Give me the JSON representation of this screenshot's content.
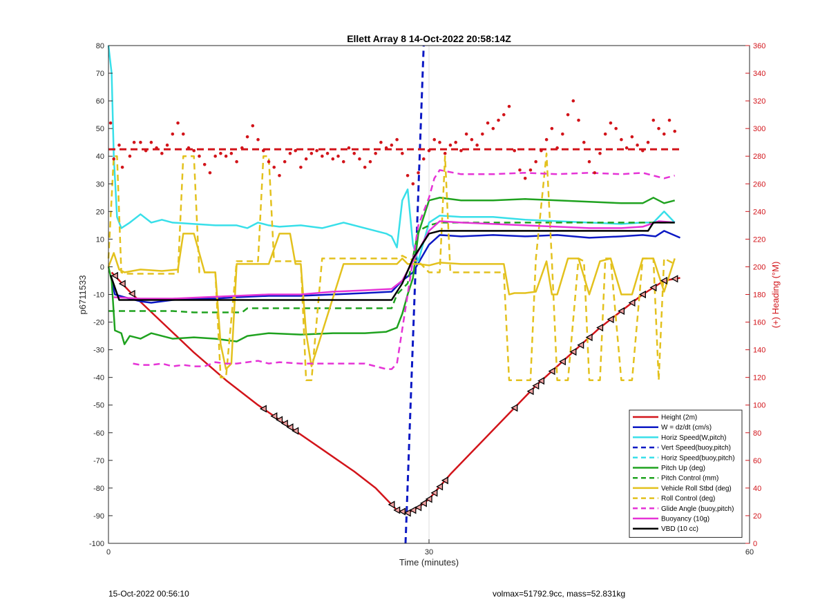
{
  "chart_data": {
    "type": "line",
    "title": "Ellett Array 8 14-Oct-2022 20:58:14Z",
    "xlabel": "Time (minutes)",
    "ylabel": "p6711533",
    "y2label": "(+) Heading (°M)",
    "xlim": [
      0,
      60
    ],
    "ylim": [
      -100,
      80
    ],
    "y2lim": [
      0,
      360
    ],
    "xticks": [
      0,
      30,
      60
    ],
    "yticks": [
      -100,
      -90,
      -80,
      -70,
      -60,
      -50,
      -40,
      -30,
      -20,
      -10,
      0,
      10,
      20,
      30,
      40,
      50,
      60,
      70,
      80
    ],
    "y2ticks": [
      0,
      20,
      40,
      60,
      80,
      100,
      120,
      140,
      160,
      180,
      200,
      220,
      240,
      260,
      280,
      300,
      320,
      340,
      360
    ],
    "grid": "x-only",
    "legend_position": "bottom-right",
    "colors": {
      "red": "#d2141a",
      "blue": "#0b18c4",
      "cyan": "#38dfe9",
      "green": "#1fa21f",
      "yellow": "#e3c11d",
      "magenta": "#e533d6",
      "black": "#000000",
      "right_axis": "#d2141a"
    },
    "series": [
      {
        "name": "Height (2m)",
        "color": "#d2141a",
        "style": "solid",
        "x": [
          0.3,
          2,
          5,
          8,
          11,
          14,
          17,
          20,
          23,
          25,
          26,
          27,
          28,
          29,
          30,
          32,
          34,
          36,
          38,
          40,
          42,
          44,
          46,
          48,
          50,
          52,
          53.5
        ],
        "y": [
          -2,
          -9,
          -20,
          -31,
          -41,
          -50,
          -58,
          -66,
          -74,
          -80,
          -84,
          -88,
          -89,
          -87,
          -84,
          -75,
          -67,
          -59,
          -51,
          -43,
          -36,
          -29,
          -22,
          -16,
          -10,
          -5,
          -4
        ]
      },
      {
        "name": "W = dz/dt (cm/s)",
        "color": "#0b18c4",
        "style": "solid",
        "x": [
          0.2,
          0.6,
          1.5,
          3,
          4,
          6,
          8,
          10,
          12,
          15,
          18,
          21,
          24,
          26.5,
          27.5,
          28.5,
          30,
          31,
          33,
          36,
          39,
          42,
          45,
          48,
          50,
          51.2,
          52,
          53.5
        ],
        "y": [
          -3,
          -10,
          -11,
          -12.5,
          -13,
          -12,
          -11.5,
          -11.5,
          -11,
          -10.5,
          -10.5,
          -10,
          -9.5,
          -9,
          -5,
          -2,
          8,
          11.5,
          11,
          11.5,
          11,
          11.5,
          10.5,
          11,
          11.5,
          11,
          13,
          10.5
        ]
      },
      {
        "name": "Horiz Speed(W,pitch)",
        "color": "#38dfe9",
        "style": "solid",
        "x": [
          0,
          0.3,
          0.5,
          0.8,
          1.2,
          2,
          3,
          4,
          5,
          6,
          8,
          10,
          12,
          13,
          14,
          15,
          16,
          18,
          20,
          22,
          24,
          26,
          26.5,
          27,
          27.5,
          28,
          28.5,
          29,
          30,
          31,
          33,
          36,
          39,
          42,
          45,
          48,
          50,
          51,
          52,
          53
        ],
        "y": [
          80,
          70,
          40,
          18,
          14,
          16,
          19,
          16,
          17,
          16,
          15.5,
          15,
          15,
          14,
          16,
          15,
          14.5,
          15,
          14,
          16,
          14,
          12,
          11,
          7,
          24,
          28,
          8,
          2,
          16,
          18.5,
          18,
          18,
          17,
          16.5,
          16,
          15.5,
          16,
          16,
          20,
          16
        ]
      },
      {
        "name": "Vert Speed(buoy,pitch)",
        "color": "#0b18c4",
        "style": "dashed",
        "x": [
          27.8,
          29.5
        ],
        "y": [
          -100,
          80
        ]
      },
      {
        "name": "Horiz Speed(buoy,pitch)",
        "color": "#38dfe9",
        "style": "dashed",
        "x": [],
        "y": []
      },
      {
        "name": "Pitch Up (deg)",
        "color": "#1fa21f",
        "style": "solid",
        "x": [
          0,
          0.3,
          0.6,
          1.2,
          1.5,
          2,
          3,
          4,
          5,
          6,
          8,
          10,
          12,
          13,
          15,
          18,
          21,
          24,
          26,
          27,
          27.5,
          28,
          28.5,
          29,
          30,
          31,
          33,
          36,
          39,
          42,
          45,
          48,
          50,
          51,
          52,
          53
        ],
        "y": [
          0,
          -5,
          -23,
          -24,
          -28,
          -25,
          -26,
          -24,
          -25,
          -26,
          -25.5,
          -26,
          -27,
          -25,
          -24,
          -24.5,
          -24,
          -24,
          -23.5,
          -22,
          -17,
          -10,
          -4,
          12,
          24,
          25,
          24,
          24,
          24.5,
          24,
          23.5,
          23,
          23,
          25,
          23,
          24
        ]
      },
      {
        "name": "Pitch Control (mm)",
        "color": "#1fa21f",
        "style": "dashed",
        "x": [
          0,
          0.5,
          1,
          3,
          6,
          8,
          10,
          12,
          12.5,
          13,
          15,
          18,
          21,
          24,
          26.5,
          27,
          28,
          29,
          30,
          31,
          33,
          36,
          39,
          42,
          45,
          48,
          50,
          53
        ],
        "y": [
          -16,
          -16,
          -16,
          -16,
          -16,
          -16.5,
          -16.5,
          -16.5,
          -16.5,
          -15,
          -15,
          -15,
          -15,
          -15,
          -15,
          -10,
          -6,
          13,
          15,
          16,
          16,
          16,
          16,
          16,
          16,
          16,
          16,
          16
        ]
      },
      {
        "name": "Vehicle Roll Stbd (deg)",
        "color": "#e3c11d",
        "style": "solid",
        "x": [
          0,
          0.5,
          1,
          1.5,
          3,
          5,
          6.5,
          7,
          8,
          9,
          10,
          10.5,
          11,
          11.5,
          12,
          13,
          15,
          16,
          17,
          17.5,
          18,
          18.5,
          19,
          22,
          25,
          27,
          27.5,
          28,
          29,
          30,
          31,
          33,
          36,
          37,
          37.5,
          38,
          39,
          40,
          41,
          41.5,
          42,
          43,
          44,
          45,
          46,
          47,
          48,
          49,
          50,
          51,
          52,
          53
        ],
        "y": [
          0,
          5,
          -1,
          -2,
          -1,
          -1.5,
          -1,
          12,
          12,
          -2,
          -2,
          -28,
          -37,
          -35,
          1,
          1,
          1,
          12,
          12,
          1,
          1,
          -24,
          -36,
          1,
          1,
          1,
          3,
          1,
          1,
          0.5,
          1.5,
          1,
          1,
          1,
          -10,
          -9.5,
          -9.5,
          -9,
          2,
          -10,
          -10,
          3,
          3,
          -10,
          2,
          3,
          -10,
          -10,
          3,
          3,
          -9,
          3
        ]
      },
      {
        "name": "Roll Control (deg)",
        "color": "#e3c11d",
        "style": "dashed",
        "x": [
          0,
          0.5,
          0.8,
          1.2,
          1.5,
          6.5,
          7,
          8,
          8.5,
          10,
          10.5,
          11,
          12,
          13,
          14,
          14.5,
          15,
          15.5,
          16,
          17,
          18,
          18.5,
          19,
          20,
          24,
          27,
          27.5,
          28,
          29,
          30,
          31,
          31.5,
          32,
          33,
          37,
          37.5,
          38,
          39.5,
          40,
          41,
          41.5,
          42,
          43,
          44,
          44.5,
          45,
          46,
          46.5,
          47,
          48,
          49,
          50,
          51,
          51.5,
          52,
          53
        ],
        "y": [
          3,
          40,
          40,
          -2,
          -2.5,
          -2.5,
          40,
          40,
          -2,
          -2,
          -40,
          -40,
          2,
          2,
          2,
          40,
          40,
          2,
          2,
          2,
          2,
          -41,
          -41,
          3,
          3,
          3,
          4,
          3,
          2,
          -2,
          -2,
          40,
          -2,
          -2,
          -2,
          -41,
          -41,
          -41,
          3,
          41,
          2,
          -41,
          -41,
          3,
          2,
          -41,
          -41,
          3,
          3,
          -41,
          -41,
          3,
          3,
          -41,
          3,
          1
        ]
      },
      {
        "name": "Glide Angle (buoy,pitch)",
        "color": "#e533d6",
        "style": "dashed",
        "x": [
          2.3,
          3,
          4,
          5,
          6,
          7,
          8,
          9,
          10,
          11,
          12,
          13,
          14,
          15,
          16,
          18,
          20,
          22,
          24,
          26,
          26.5,
          27,
          28,
          29,
          30,
          30.5,
          31,
          33,
          36,
          39,
          42,
          45,
          48,
          50,
          51,
          52,
          53
        ],
        "y": [
          -35,
          -35.5,
          -35.5,
          -35,
          -36,
          -35.5,
          -36,
          -36,
          -34.5,
          -35,
          -35,
          -34.5,
          -34,
          -35,
          -34.5,
          -35,
          -35,
          -35,
          -35,
          -37,
          -37,
          -35,
          -10,
          15,
          25,
          32,
          35,
          33.5,
          33.5,
          34,
          33.5,
          34,
          33.5,
          34,
          33,
          32,
          33
        ]
      },
      {
        "name": "Buoyancy (10g)",
        "color": "#e533d6",
        "style": "solid",
        "x": [
          0.5,
          3,
          6,
          9,
          12,
          15,
          18,
          21,
          24,
          26.5,
          27.5,
          28.5,
          30,
          31,
          33,
          36,
          39,
          42,
          45,
          48,
          50,
          51.5,
          53
        ],
        "y": [
          -11,
          -11.5,
          -11.5,
          -11,
          -10.5,
          -10,
          -10,
          -9,
          -8.5,
          -8,
          -5,
          2,
          13,
          16.5,
          16,
          15.5,
          15,
          14.5,
          14,
          14,
          14.5,
          16.5,
          16
        ]
      },
      {
        "name": "VBD (10 cc)",
        "color": "#000000",
        "style": "solid",
        "x": [
          0.2,
          1,
          3,
          5,
          26.5,
          27.5,
          28.5,
          30,
          31,
          50.5,
          51,
          53
        ],
        "y": [
          -3,
          -12,
          -12,
          -12,
          -12,
          -6,
          3,
          12,
          13,
          13,
          16,
          16
        ]
      }
    ],
    "heading_series": {
      "axis": "right",
      "reference_line": 285,
      "reference_color": "#d2141a",
      "reference_style": "dashed",
      "dots_x": [
        0.2,
        0.5,
        1.0,
        1.3,
        2.0,
        2.4,
        3.0,
        3.5,
        4.0,
        4.5,
        5.0,
        5.5,
        6.0,
        6.5,
        7.0,
        7.5,
        8.0,
        8.5,
        9.0,
        9.5,
        10.0,
        10.5,
        11.0,
        11.5,
        12.0,
        12.5,
        13.0,
        13.5,
        14.0,
        14.5,
        15.0,
        15.5,
        16.0,
        16.5,
        17.0,
        17.5,
        18.0,
        18.5,
        19.0,
        19.5,
        20.0,
        20.5,
        21.0,
        21.5,
        22.0,
        22.5,
        23.0,
        23.5,
        24.0,
        24.5,
        25.0,
        25.5,
        26.0,
        26.5,
        27.0,
        27.5,
        28.0,
        28.5,
        29.0,
        29.5,
        30.0,
        30.5,
        31.0,
        31.5,
        32.0,
        32.5,
        33.0,
        33.5,
        34.0,
        34.5,
        35.0,
        35.5,
        36.0,
        36.5,
        37.0,
        37.5,
        38.0,
        38.5,
        39.0,
        39.5,
        40.0,
        40.5,
        41.0,
        41.5,
        42.0,
        42.5,
        43.0,
        43.5,
        44.0,
        44.5,
        45.0,
        45.5,
        46.0,
        46.5,
        47.0,
        47.5,
        48.0,
        48.5,
        49.0,
        49.5,
        50.0,
        50.5,
        51.0,
        51.5,
        52.0,
        52.5,
        53.0
      ],
      "dots_y": [
        304,
        278,
        288,
        272,
        280,
        290,
        290,
        284,
        290,
        286,
        282,
        288,
        296,
        304,
        296,
        286,
        284,
        280,
        274,
        268,
        280,
        282,
        280,
        282,
        276,
        286,
        294,
        302,
        292,
        284,
        276,
        272,
        266,
        276,
        282,
        284,
        272,
        278,
        282,
        284,
        280,
        282,
        278,
        280,
        276,
        286,
        282,
        278,
        272,
        276,
        282,
        290,
        286,
        288,
        292,
        282,
        266,
        260,
        268,
        278,
        284,
        292,
        290,
        282,
        288,
        290,
        284,
        296,
        292,
        288,
        296,
        304,
        300,
        306,
        310,
        316,
        284,
        270,
        264,
        270,
        276,
        284,
        292,
        300,
        286,
        296,
        310,
        320,
        306,
        290,
        276,
        268,
        282,
        296,
        304,
        300,
        292,
        286,
        294,
        288,
        284,
        290,
        306,
        300,
        296,
        306,
        298
      ]
    },
    "markers": {
      "shape": "triangle",
      "on_series": "Height (2m)",
      "x": [
        0.6,
        1.3,
        2.2,
        14.5,
        15.5,
        16,
        16.5,
        17,
        17.5,
        26.5,
        27,
        27.5,
        28,
        28.5,
        29,
        29.5,
        30,
        30.5,
        31,
        31.5,
        38,
        39.5,
        40,
        40.5,
        41.5,
        42.5,
        43.5,
        44.2,
        45,
        46,
        47,
        48,
        49,
        50,
        51,
        52,
        53
      ]
    }
  },
  "footer": {
    "left": "15-Oct-2022 00:56:10",
    "right": "volmax=51792.9cc, mass=52.831kg"
  }
}
